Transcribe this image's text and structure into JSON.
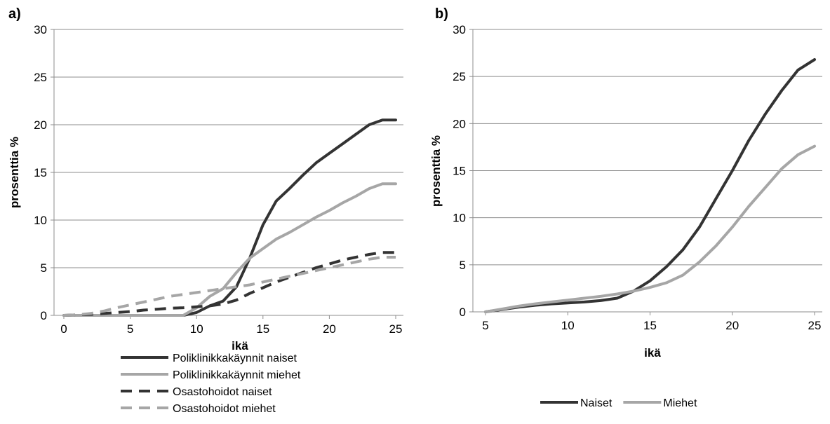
{
  "colors": {
    "dark": "#333333",
    "light": "#a6a6a6",
    "grid": "#8c8c8c"
  },
  "chart_data": [
    {
      "id": "a",
      "panel_label": "a)",
      "type": "line",
      "xlabel": "ikä",
      "ylabel": "prosenttia %",
      "xlim": [
        0,
        25
      ],
      "ylim": [
        0,
        30
      ],
      "xticks": [
        0,
        5,
        10,
        15,
        20,
        25
      ],
      "yticks": [
        0,
        5,
        10,
        15,
        20,
        25,
        30
      ],
      "grid": true,
      "legend_position": "bottom",
      "series": [
        {
          "name": "Poliklinikkakäynnit naiset",
          "color": "#333333",
          "dashed": false,
          "x": [
            0,
            1,
            2,
            3,
            4,
            5,
            6,
            7,
            8,
            9,
            10,
            11,
            12,
            13,
            14,
            15,
            16,
            17,
            18,
            19,
            20,
            21,
            22,
            23,
            24,
            25
          ],
          "y": [
            0,
            0,
            0,
            0,
            0,
            0,
            0,
            0,
            0,
            0,
            0.3,
            1.0,
            1.5,
            3.0,
            6.0,
            9.5,
            12.0,
            13.3,
            14.7,
            16.0,
            17.0,
            18.0,
            19.0,
            20.0,
            20.5,
            20.5
          ]
        },
        {
          "name": "Poliklinikkakäynnit miehet",
          "color": "#a6a6a6",
          "dashed": false,
          "x": [
            0,
            1,
            2,
            3,
            4,
            5,
            6,
            7,
            8,
            9,
            10,
            11,
            12,
            13,
            14,
            15,
            16,
            17,
            18,
            19,
            20,
            21,
            22,
            23,
            24,
            25
          ],
          "y": [
            0,
            0,
            0,
            0,
            0,
            0,
            0,
            0,
            0,
            0,
            0.8,
            2.0,
            2.8,
            4.5,
            6.0,
            7.0,
            8.0,
            8.7,
            9.5,
            10.3,
            11.0,
            11.8,
            12.5,
            13.3,
            13.8,
            13.8
          ]
        },
        {
          "name": "Osastohoidot naiset",
          "color": "#333333",
          "dashed": true,
          "x": [
            0,
            1,
            2,
            3,
            4,
            5,
            6,
            7,
            8,
            9,
            10,
            11,
            12,
            13,
            14,
            15,
            16,
            17,
            18,
            19,
            20,
            21,
            22,
            23,
            24,
            25
          ],
          "y": [
            0,
            0.05,
            0.1,
            0.2,
            0.3,
            0.4,
            0.55,
            0.65,
            0.75,
            0.8,
            0.9,
            1.0,
            1.2,
            1.6,
            2.3,
            2.9,
            3.5,
            4.0,
            4.5,
            5.0,
            5.4,
            5.8,
            6.1,
            6.4,
            6.6,
            6.6
          ]
        },
        {
          "name": "Osastohoidot miehet",
          "color": "#a6a6a6",
          "dashed": true,
          "x": [
            0,
            1,
            2,
            3,
            4,
            5,
            6,
            7,
            8,
            9,
            10,
            11,
            12,
            13,
            14,
            15,
            16,
            17,
            18,
            19,
            20,
            21,
            22,
            23,
            24,
            25
          ],
          "y": [
            0,
            0.05,
            0.2,
            0.45,
            0.8,
            1.1,
            1.4,
            1.7,
            2.0,
            2.2,
            2.4,
            2.6,
            2.8,
            3.0,
            3.2,
            3.5,
            3.8,
            4.1,
            4.4,
            4.7,
            5.0,
            5.3,
            5.6,
            5.9,
            6.1,
            6.1
          ]
        }
      ]
    },
    {
      "id": "b",
      "panel_label": "b)",
      "type": "line",
      "xlabel": "ikä",
      "ylabel": "prosenttia %",
      "xlim": [
        5,
        25
      ],
      "ylim": [
        0,
        30
      ],
      "xticks": [
        5,
        10,
        15,
        20,
        25
      ],
      "yticks": [
        0,
        5,
        10,
        15,
        20,
        25,
        30
      ],
      "grid": true,
      "legend_position": "bottom",
      "series": [
        {
          "name": "Naiset",
          "color": "#333333",
          "dashed": false,
          "x": [
            5,
            6,
            7,
            8,
            9,
            10,
            11,
            12,
            13,
            14,
            15,
            16,
            17,
            18,
            19,
            20,
            21,
            22,
            23,
            24,
            25
          ],
          "y": [
            0,
            0.25,
            0.5,
            0.7,
            0.85,
            0.95,
            1.05,
            1.2,
            1.45,
            2.2,
            3.3,
            4.8,
            6.6,
            9.0,
            12.0,
            15.0,
            18.2,
            21.0,
            23.5,
            25.7,
            26.8
          ]
        },
        {
          "name": "Miehet",
          "color": "#a6a6a6",
          "dashed": false,
          "x": [
            5,
            6,
            7,
            8,
            9,
            10,
            11,
            12,
            13,
            14,
            15,
            16,
            17,
            18,
            19,
            20,
            21,
            22,
            23,
            24,
            25
          ],
          "y": [
            0,
            0.3,
            0.6,
            0.85,
            1.05,
            1.25,
            1.45,
            1.65,
            1.9,
            2.2,
            2.6,
            3.1,
            3.9,
            5.3,
            7.0,
            9.0,
            11.2,
            13.2,
            15.2,
            16.7,
            17.6
          ]
        }
      ]
    }
  ]
}
